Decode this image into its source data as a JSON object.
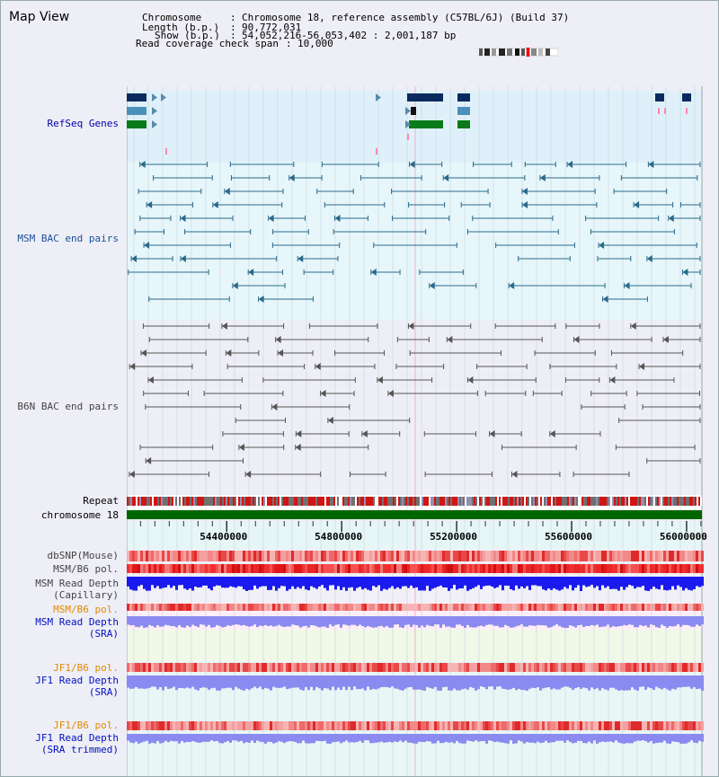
{
  "title": "Map View",
  "info": {
    "chromosome_key": "Chromosome",
    "chromosome_val": "Chromosome 18, reference assembly (C57BL/6J) (Build 37)",
    "length_key": "Length (b.p.)",
    "length_val": "90,772,031",
    "show_key": "Show (b.p.)",
    "show_val": "54,052,216-56,053,402 : 2,001,187 bp",
    "coverage_key": "Read coverage check span",
    "coverage_val": "10,000"
  },
  "tracks": {
    "refseq": "RefSeq Genes",
    "msm_bac": "MSM BAC end pairs",
    "b6n_bac": "B6N BAC end pairs",
    "repeat": "Repeat",
    "chromosome": "chromosome 18",
    "dbsnp": "dbSNP(Mouse)",
    "msm_b6_pol": "MSM/B6 pol.",
    "msm_depth_cap_1": "MSM Read Depth",
    "msm_depth_cap_2": "(Capillary)",
    "msm_b6_pol_sra": "MSM/B6 pol.",
    "msm_depth_sra_1": "MSM Read Depth",
    "msm_depth_sra_2": "(SRA)",
    "jf1_b6_pol": "JF1/B6 pol.",
    "jf1_depth_sra_1": "JF1 Read Depth",
    "jf1_depth_sra_2": "(SRA)",
    "jf1_b6_pol_trim": "JF1/B6 pol.",
    "jf1_depth_trim_1": "JF1 Read Depth",
    "jf1_depth_trim_2": "(SRA trimmed)"
  },
  "axis": {
    "ticks": [
      "54400000",
      "54800000",
      "55200000",
      "55600000",
      "56000000"
    ],
    "tick_values": [
      54400000,
      54800000,
      55200000,
      55600000,
      56000000
    ],
    "range": [
      54052216,
      56053402
    ]
  },
  "colors": {
    "refseq_bg": "#dff0fa",
    "msm_bg": "#e6f6fa",
    "b6n_bg": "#eeeef6",
    "chromosome_bar": "#006600",
    "gene_dark": "#0a2a5e",
    "gene_mid": "#4a90b8",
    "gene_green": "#0a7a1a",
    "msm_line": "#2a6a8a",
    "b6n_line": "#555555",
    "pol_red": "#e02020",
    "depth_blue": "#1a1aee",
    "depth_light": "#8a8af0"
  }
}
